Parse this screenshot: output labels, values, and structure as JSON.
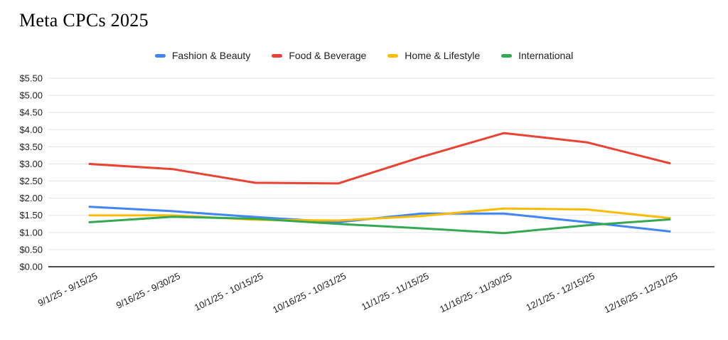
{
  "title": "Meta CPCs 2025",
  "legend": {
    "position": "top",
    "items": [
      {
        "label": "Fashion & Beauty",
        "color": "#4285F4"
      },
      {
        "label": "Food & Beverage",
        "color": "#EA4335"
      },
      {
        "label": "Home & Lifestyle",
        "color": "#FBBC04"
      },
      {
        "label": "International",
        "color": "#34A853"
      }
    ]
  },
  "chart_data": {
    "type": "line",
    "title": "Meta CPCs 2025",
    "categories": [
      "9/1/25 - 9/15/25",
      "9/16/25 - 9/30/25",
      "10/1/25 - 10/15/25",
      "10/16/25 - 10/31/25",
      "11/1/25 - 11/15/25",
      "11/16/25 - 11/30/25",
      "12/1/25 - 12/15/25",
      "12/16/25 - 12/31/25"
    ],
    "series": [
      {
        "name": "Fashion & Beauty",
        "color": "#4285F4",
        "values": [
          1.75,
          1.62,
          1.45,
          1.3,
          1.55,
          1.55,
          1.3,
          1.03
        ]
      },
      {
        "name": "Food & Beverage",
        "color": "#EA4335",
        "values": [
          3.0,
          2.85,
          2.45,
          2.43,
          3.2,
          3.9,
          3.63,
          3.02
        ]
      },
      {
        "name": "Home & Lifestyle",
        "color": "#FBBC04",
        "values": [
          1.5,
          1.5,
          1.37,
          1.35,
          1.48,
          1.7,
          1.67,
          1.42
        ]
      },
      {
        "name": "International",
        "color": "#34A853",
        "values": [
          1.3,
          1.46,
          1.4,
          1.25,
          1.12,
          0.98,
          1.21,
          1.38
        ]
      }
    ],
    "xlabel": "",
    "ylabel": "",
    "y_axis": {
      "min": 0,
      "max": 5.5,
      "step": 0.5,
      "tick_labels": [
        "$0.00",
        "$0.50",
        "$1.00",
        "$1.50",
        "$2.00",
        "$2.50",
        "$3.00",
        "$3.50",
        "$4.00",
        "$4.50",
        "$5.00",
        "$5.50"
      ]
    },
    "grid": true,
    "legend_position": "top"
  }
}
